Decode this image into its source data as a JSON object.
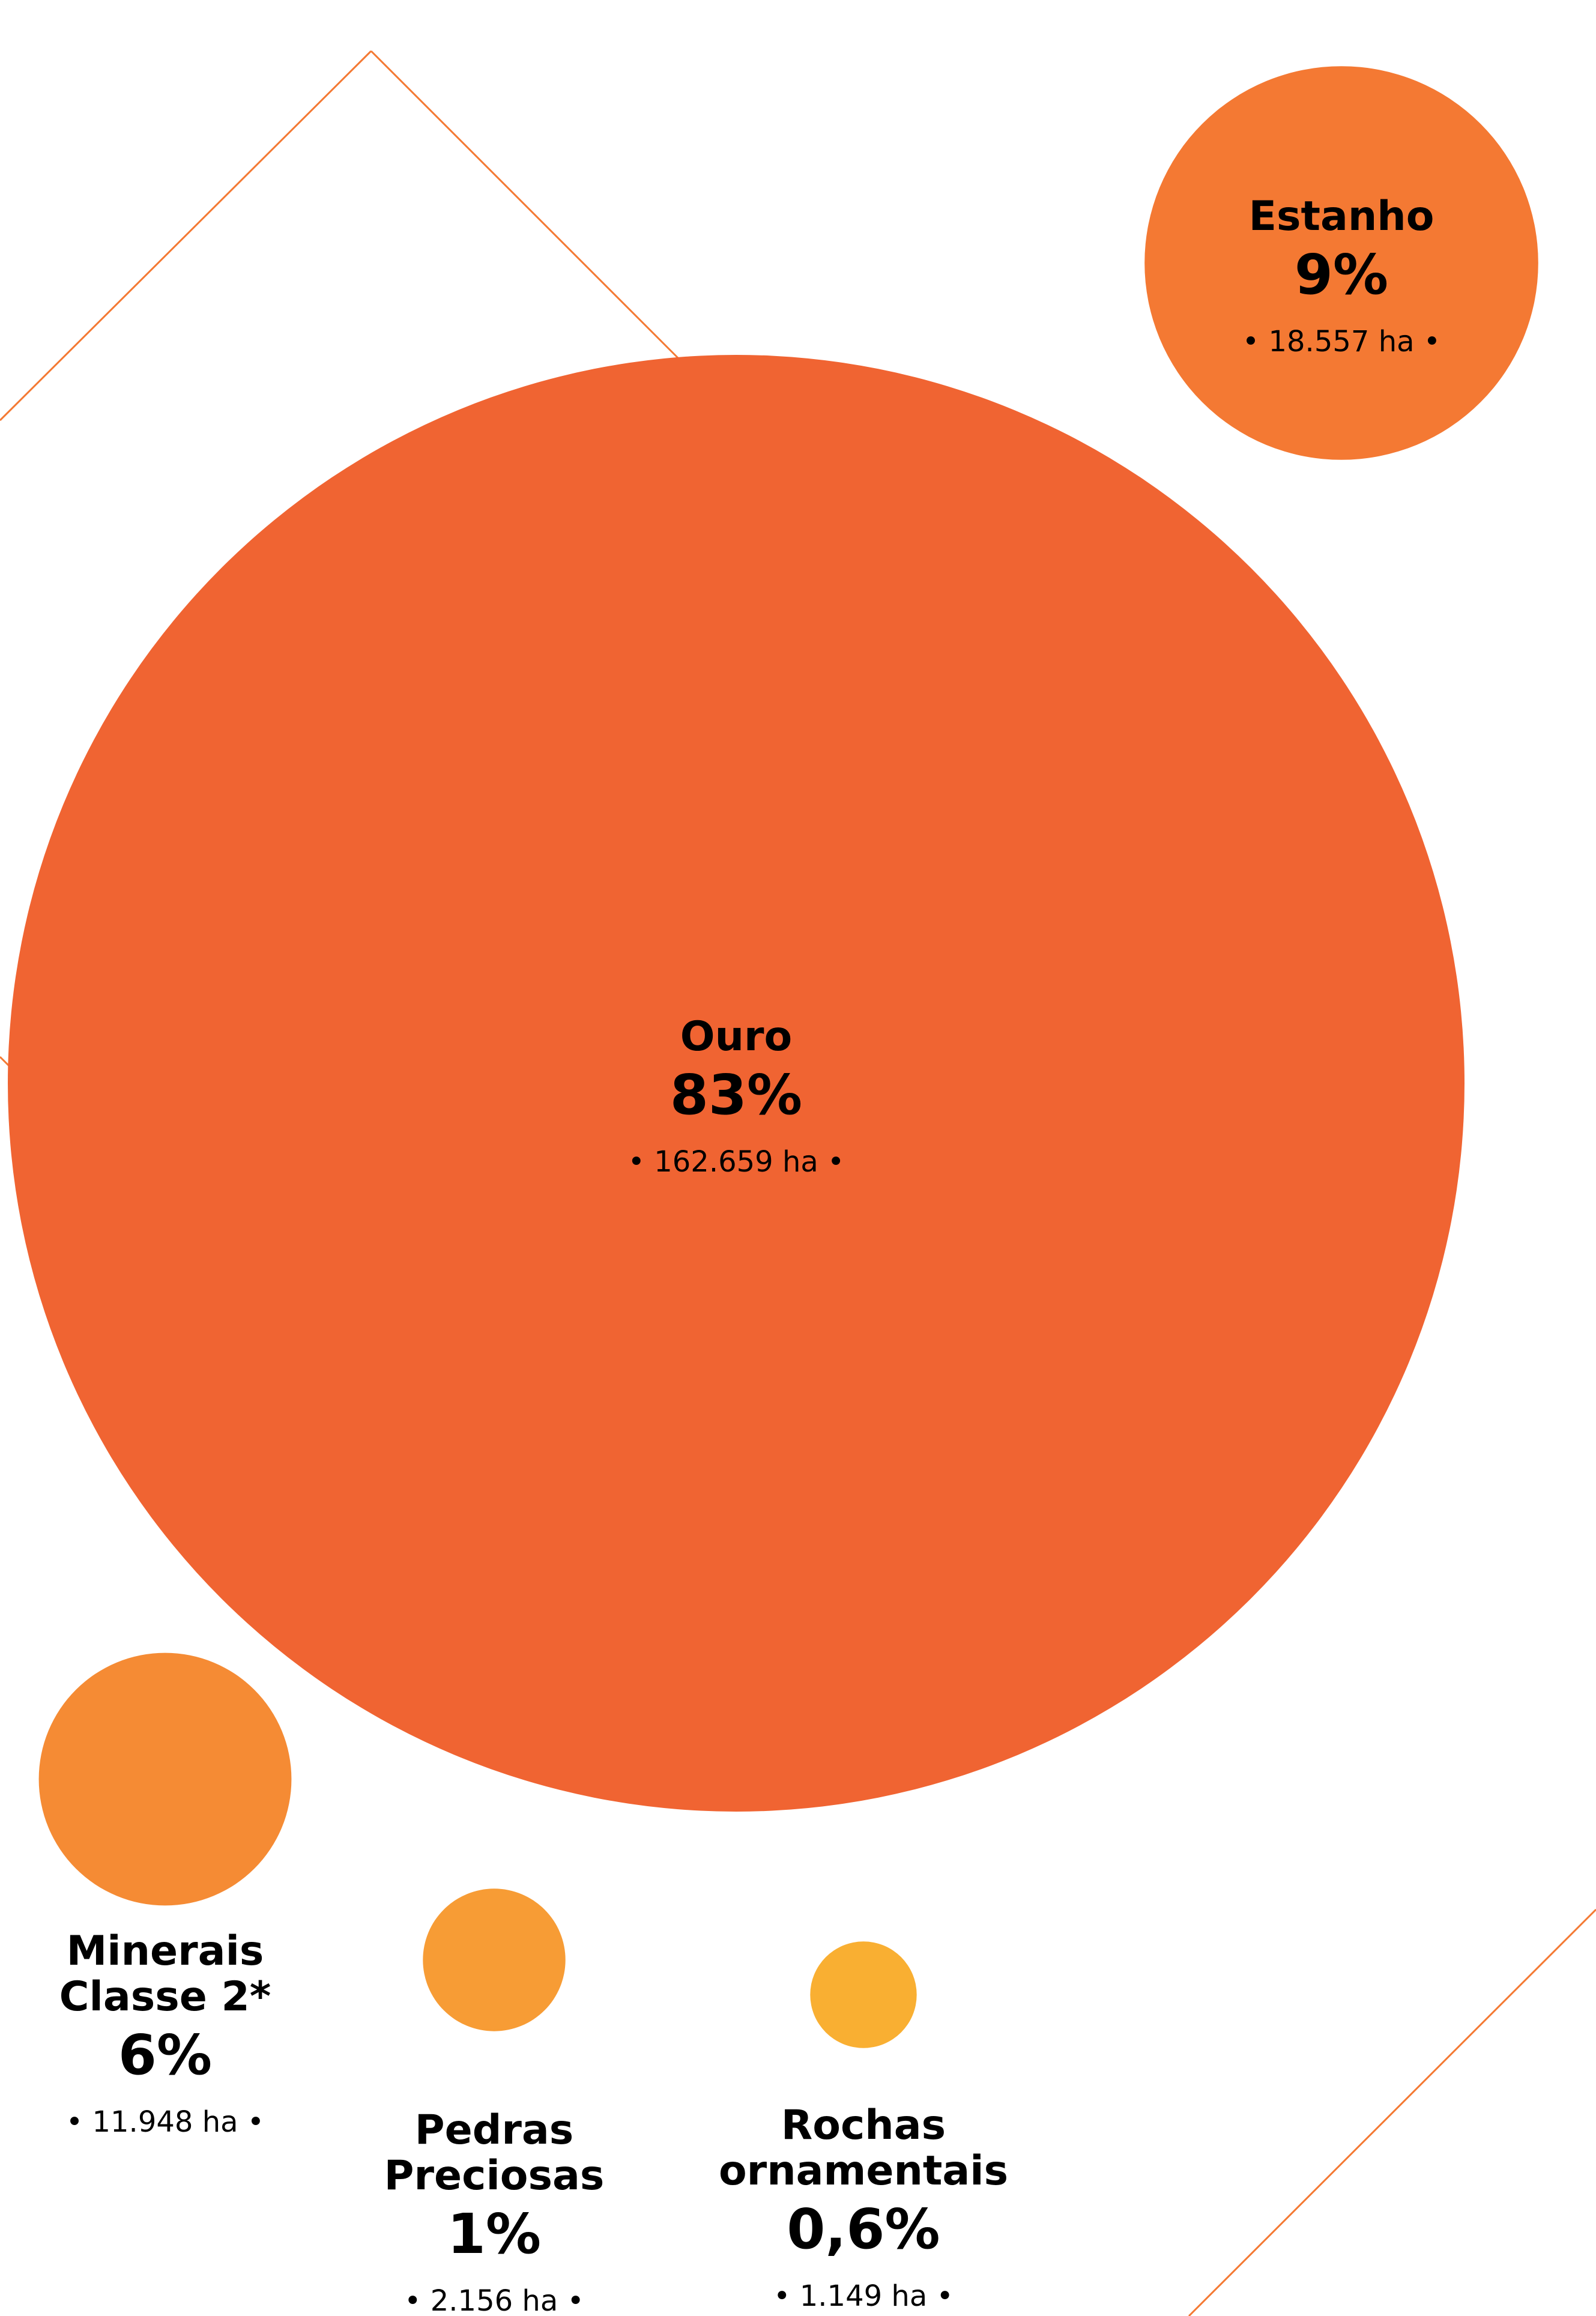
{
  "chart_data": {
    "type": "bubble",
    "items": [
      {
        "name": [
          "Ouro"
        ],
        "percent": "83%",
        "area_label": "• 162.659 ha •",
        "value_ha": 162659,
        "color": "#F06432"
      },
      {
        "name": [
          "Estanho"
        ],
        "percent": "9%",
        "area_label": "• 18.557 ha •",
        "value_ha": 18557,
        "color": "#F47933"
      },
      {
        "name": [
          "Minerais",
          "Classe 2*"
        ],
        "percent": "6%",
        "area_label": "• 11.948 ha •",
        "value_ha": 11948,
        "color": "#F58B34"
      },
      {
        "name": [
          "Pedras",
          "Preciosas"
        ],
        "percent": "1%",
        "area_label": "• 2.156 ha •",
        "value_ha": 2156,
        "color": "#F79C35"
      },
      {
        "name": [
          "Rochas",
          "ornamentais"
        ],
        "percent": "0,6%",
        "area_label": "• 1.149 ha •",
        "value_ha": 1149,
        "color": "#F9AF32"
      }
    ],
    "decoration_color": "#F47933"
  }
}
